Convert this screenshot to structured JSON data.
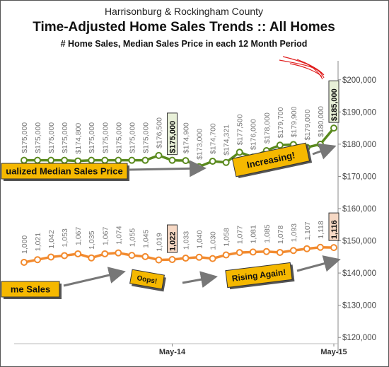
{
  "header": {
    "line1": "Harrisonburg & Rockingham County",
    "line2": "Time-Adjusted Home Sales Trends  ::  All Homes",
    "line3": "# Home Sales, Median Sales Price in each 12 Month Period"
  },
  "colors": {
    "price_line": "#5a8a1e",
    "sales_line": "#f28a2e",
    "callout_fill": "#f5b800",
    "arrow": "#777777",
    "highlight_price": "#e8f0d8",
    "highlight_sales": "#f6d8c4",
    "scribble": "#e02020"
  },
  "chart_data": {
    "type": "line",
    "x_tick_labels": [
      "May-14",
      "May-15"
    ],
    "ylim": [
      115000,
      205000
    ],
    "y_ticks": [
      "$120,000",
      "$130,000",
      "$140,000",
      "$150,000",
      "$160,000",
      "$170,000",
      "$180,000",
      "$190,000",
      "$200,000"
    ],
    "y_tick_values": [
      120000,
      130000,
      140000,
      150000,
      160000,
      170000,
      180000,
      190000,
      200000
    ],
    "series": [
      {
        "key": "price",
        "labels": [
          "$175,000",
          "$175,000",
          "$175,000",
          "$175,000",
          "$174,800",
          "$175,000",
          "$175,000",
          "$175,000",
          "$175,000",
          "$175,000",
          "$176,500",
          "$175,000",
          "$174,900",
          "$173,000",
          "$174,700",
          "$174,321",
          "$177,500",
          "$176,000",
          "$178,000",
          "$179,700",
          "$179,900",
          "$179,000",
          "$180,000",
          "$185,000"
        ],
        "values": [
          175000,
          175000,
          175000,
          175000,
          174800,
          175000,
          175000,
          175000,
          175000,
          175000,
          176500,
          175000,
          174900,
          173000,
          174700,
          174321,
          177500,
          176000,
          178000,
          179700,
          179900,
          179000,
          180000,
          185000
        ],
        "highlight_index": [
          11,
          23
        ]
      },
      {
        "key": "sales",
        "labels": [
          "1,000",
          "1,021",
          "1,042",
          "1,053",
          "1,067",
          "1,035",
          "1,067",
          "1,074",
          "1,055",
          "1,045",
          "1,019",
          "1,022",
          "1,033",
          "1,040",
          "1,030",
          "1,058",
          "1,077",
          "1,081",
          "1,085",
          "1,078",
          "1,093",
          "1,107",
          "1,118",
          "1,116"
        ],
        "values": [
          1000,
          1021,
          1042,
          1053,
          1067,
          1035,
          1067,
          1074,
          1055,
          1045,
          1019,
          1022,
          1033,
          1040,
          1030,
          1058,
          1077,
          1081,
          1085,
          1078,
          1093,
          1107,
          1118,
          1116
        ],
        "highlight_index": [
          11,
          23
        ]
      }
    ],
    "annotations": [
      {
        "key": "price_label",
        "text": "ualized Median Sales Price"
      },
      {
        "key": "increasing",
        "text": "Increasing!"
      },
      {
        "key": "sales_label",
        "text": "me Sales"
      },
      {
        "key": "oops",
        "text": "Oops!"
      },
      {
        "key": "rising",
        "text": "Rising Again!"
      }
    ]
  }
}
